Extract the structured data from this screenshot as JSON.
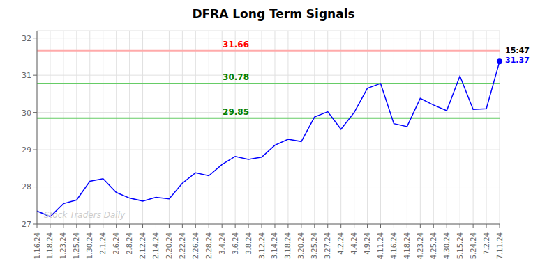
{
  "chart_data": {
    "type": "line",
    "title": "DFRA Long Term Signals",
    "categories": [
      "1.16.24",
      "1.18.24",
      "1.23.24",
      "1.25.24",
      "1.30.24",
      "2.1.24",
      "2.6.24",
      "2.8.24",
      "2.12.24",
      "2.14.24",
      "2.20.24",
      "2.22.24",
      "2.26.24",
      "2.28.24",
      "3.4.24",
      "3.6.24",
      "3.8.24",
      "3.12.24",
      "3.14.24",
      "3.18.24",
      "3.20.24",
      "3.25.24",
      "3.27.24",
      "4.2.24",
      "4.4.24",
      "4.9.24",
      "4.11.24",
      "4.16.24",
      "4.18.24",
      "4.23.24",
      "4.25.24",
      "4.30.24",
      "5.15.24",
      "5.24.24",
      "7.2.24",
      "7.11.24"
    ],
    "values": [
      27.35,
      27.2,
      27.55,
      27.65,
      28.15,
      28.22,
      27.85,
      27.7,
      27.62,
      27.72,
      27.68,
      28.1,
      28.38,
      28.3,
      28.6,
      28.82,
      28.74,
      28.8,
      29.12,
      29.28,
      29.22,
      29.88,
      30.02,
      29.55,
      30.0,
      30.65,
      30.78,
      29.7,
      29.62,
      30.38,
      30.2,
      30.05,
      30.98,
      30.08,
      30.1,
      31.37
    ],
    "color": "blue",
    "marker": "circle",
    "ylim": [
      27.0,
      32.2
    ],
    "yticks": [
      27,
      28,
      29,
      30,
      31,
      32
    ],
    "grid": true,
    "hlines": [
      {
        "value": 31.66,
        "label": "31.66",
        "color": "#ffaaaa",
        "label_color": "red"
      },
      {
        "value": 30.78,
        "label": "30.78",
        "color": "#66cc66",
        "label_color": "green"
      },
      {
        "value": 29.85,
        "label": "29.85",
        "color": "#66cc66",
        "label_color": "green"
      }
    ],
    "last_point": {
      "time": "15:47",
      "time_color": "black",
      "price": 31.37,
      "price_color": "blue"
    },
    "watermark": "Stock Traders Daily",
    "watermark_color": "#cccccc"
  }
}
